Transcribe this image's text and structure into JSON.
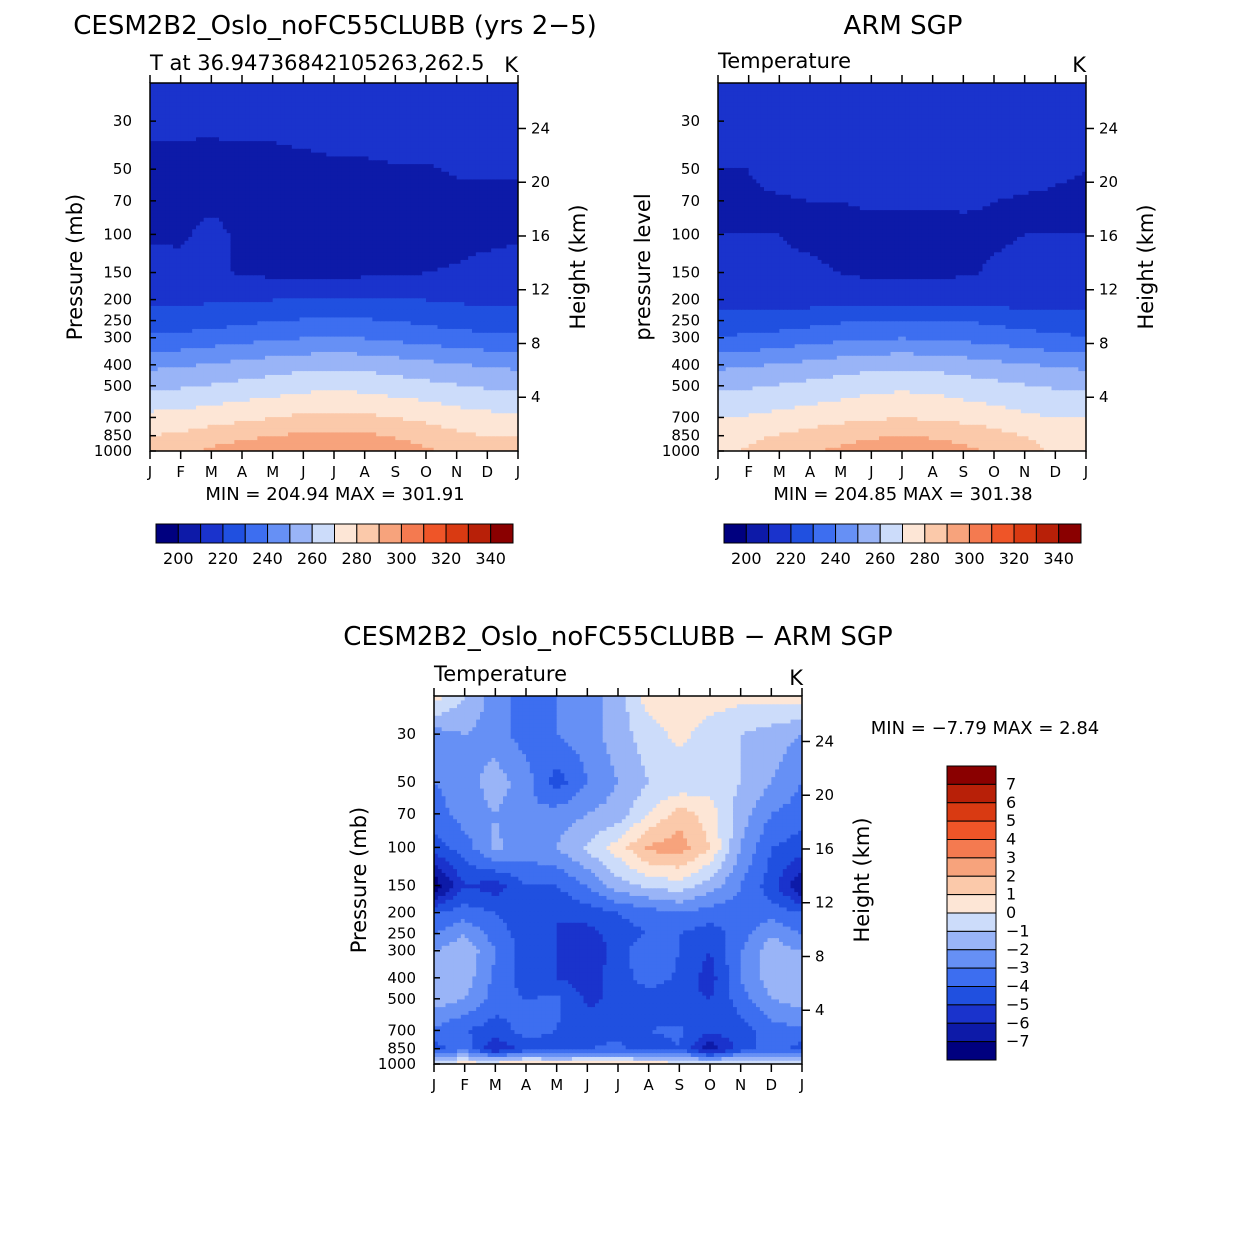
{
  "panels": [
    {
      "id": "model",
      "title": "CESM2B2_Oslo_noFC55CLUBB (yrs 2−5)",
      "subtitle": "T at 36.94736842105263,262.5",
      "units": "K",
      "left_axis_label": "Pressure (mb)",
      "right_axis_label": "Height (km)",
      "stats": "MIN = 204.94 MAX = 301.91"
    },
    {
      "id": "obs",
      "title": "ARM SGP",
      "subtitle": "Temperature",
      "units": "K",
      "left_axis_label": "pressure level",
      "right_axis_label": "Height (km)",
      "stats": "MIN = 204.85 MAX = 301.38"
    },
    {
      "id": "diff",
      "title": "CESM2B2_Oslo_noFC55CLUBB − ARM SGP",
      "subtitle": "Temperature",
      "units": "K",
      "left_axis_label": "Pressure (mb)",
      "right_axis_label": "Height (km)",
      "stats": "MIN = −7.79 MAX = 2.84"
    }
  ],
  "colors": {
    "abs_scale": [
      "#00007f",
      "#0d1aa8",
      "#1a33cc",
      "#2050e0",
      "#3d6ef0",
      "#6690f5",
      "#99b4f7",
      "#ccdcfa",
      "#fde6d6",
      "#fbc9aa",
      "#f7a37c",
      "#f47a50",
      "#ef5528",
      "#d93a12",
      "#b82008",
      "#8a0000"
    ],
    "diff_scale": [
      "#00007f",
      "#0d1aa8",
      "#1a33cc",
      "#2050e0",
      "#3d6ef0",
      "#6690f5",
      "#99b4f7",
      "#ccdcfa",
      "#fde6d6",
      "#fbc9aa",
      "#f7a37c",
      "#f47a50",
      "#ef5528",
      "#d93a12",
      "#b82008",
      "#8a0000"
    ]
  },
  "chart_data": [
    {
      "type": "heatmap",
      "name": "model",
      "months": [
        "J",
        "F",
        "M",
        "A",
        "M",
        "J",
        "J",
        "A",
        "S",
        "O",
        "N",
        "D",
        "J"
      ],
      "pressure_ticks": [
        30,
        50,
        70,
        100,
        150,
        200,
        250,
        300,
        400,
        500,
        700,
        850,
        1000
      ],
      "height_ticks": [
        4,
        8,
        12,
        16,
        20,
        24
      ],
      "colorbar_levels": [
        200,
        210,
        220,
        230,
        240,
        250,
        260,
        270,
        280,
        290,
        300,
        310,
        320,
        330,
        340
      ],
      "colorbar_labels": [
        "200",
        "220",
        "240",
        "260",
        "280",
        "300",
        "320",
        "340"
      ],
      "pressure_levels": [
        1000,
        850,
        700,
        500,
        400,
        300,
        250,
        200,
        150,
        100,
        70,
        50,
        30,
        20
      ],
      "values": [
        [
          286,
          288,
          292,
          296,
          298,
          300,
          301,
          300,
          296,
          292,
          288,
          286,
          286
        ],
        [
          280,
          282,
          285,
          288,
          290,
          292,
          293,
          292,
          289,
          286,
          282,
          280,
          280
        ],
        [
          273,
          274,
          276,
          278,
          280,
          282,
          283,
          282,
          280,
          278,
          275,
          273,
          273
        ],
        [
          258,
          259,
          261,
          263,
          265,
          267,
          268,
          267,
          265,
          263,
          261,
          259,
          258
        ],
        [
          248,
          249,
          251,
          253,
          255,
          257,
          258,
          257,
          255,
          253,
          251,
          249,
          248
        ],
        [
          232,
          233,
          235,
          237,
          239,
          240,
          241,
          240,
          238,
          236,
          234,
          233,
          232
        ],
        [
          224,
          225,
          226,
          228,
          230,
          231,
          232,
          231,
          230,
          228,
          226,
          225,
          224
        ],
        [
          218,
          218,
          219,
          219,
          220,
          221,
          222,
          222,
          221,
          220,
          219,
          218,
          218
        ],
        [
          216,
          214,
          212,
          209,
          208,
          207,
          207,
          208,
          209,
          210,
          211,
          214,
          216
        ],
        [
          208,
          208,
          214,
          207,
          206,
          206,
          206,
          206,
          206,
          207,
          207,
          207,
          208
        ],
        [
          207,
          207,
          207,
          206,
          206,
          206,
          206,
          206,
          206,
          207,
          207,
          207,
          207
        ],
        [
          207,
          207,
          206,
          206,
          206,
          207,
          208,
          208,
          209,
          209,
          211,
          211,
          211
        ],
        [
          212,
          212,
          212,
          213,
          213,
          214,
          215,
          216,
          217,
          216,
          214,
          213,
          212
        ],
        [
          214,
          214,
          214,
          215,
          216,
          217,
          218,
          219,
          219,
          218,
          216,
          215,
          214
        ]
      ]
    },
    {
      "type": "heatmap",
      "name": "obs",
      "months": [
        "J",
        "F",
        "M",
        "A",
        "M",
        "J",
        "J",
        "A",
        "S",
        "O",
        "N",
        "D",
        "J"
      ],
      "pressure_ticks": [
        30,
        50,
        70,
        100,
        150,
        200,
        250,
        300,
        400,
        500,
        700,
        850,
        1000
      ],
      "height_ticks": [
        4,
        8,
        12,
        16,
        20,
        24
      ],
      "colorbar_levels": [
        200,
        210,
        220,
        230,
        240,
        250,
        260,
        270,
        280,
        290,
        300,
        310,
        320,
        330,
        340
      ],
      "colorbar_labels": [
        "200",
        "220",
        "240",
        "260",
        "280",
        "300",
        "320",
        "340"
      ],
      "pressure_levels": [
        1000,
        850,
        700,
        500,
        400,
        300,
        250,
        200,
        150,
        100,
        70,
        50,
        30,
        20
      ],
      "values": [
        [
          278,
          281,
          285,
          289,
          292,
          295,
          297,
          296,
          293,
          288,
          283,
          279,
          278
        ],
        [
          276,
          278,
          281,
          284,
          287,
          289,
          290,
          289,
          287,
          284,
          280,
          277,
          276
        ],
        [
          270,
          271,
          273,
          275,
          277,
          279,
          280,
          279,
          277,
          275,
          272,
          270,
          270
        ],
        [
          258,
          259,
          261,
          263,
          265,
          267,
          268,
          267,
          265,
          263,
          261,
          259,
          258
        ],
        [
          248,
          249,
          251,
          253,
          255,
          257,
          258,
          257,
          255,
          253,
          251,
          249,
          248
        ],
        [
          231,
          232,
          234,
          236,
          238,
          239,
          240,
          239,
          238,
          236,
          234,
          232,
          231
        ],
        [
          224,
          224,
          225,
          227,
          229,
          230,
          231,
          231,
          230,
          228,
          226,
          225,
          224
        ],
        [
          216,
          216,
          216,
          216,
          216,
          217,
          217,
          217,
          217,
          216,
          216,
          216,
          216
        ],
        [
          212,
          212,
          211,
          211,
          210,
          208,
          208,
          208,
          209,
          211,
          212,
          212,
          212
        ],
        [
          210,
          210,
          210,
          209,
          208,
          207,
          207,
          207,
          208,
          209,
          210,
          210,
          210
        ],
        [
          209,
          209,
          209,
          210,
          210,
          211,
          211,
          211,
          211,
          210,
          209,
          209,
          209
        ],
        [
          210,
          210,
          213,
          214,
          214,
          215,
          215,
          215,
          215,
          214,
          213,
          211,
          210
        ],
        [
          213,
          213,
          214,
          215,
          216,
          218,
          218,
          219,
          218,
          216,
          215,
          214,
          213
        ],
        [
          214,
          214,
          215,
          216,
          217,
          219,
          219,
          220,
          219,
          217,
          216,
          215,
          214
        ]
      ]
    },
    {
      "type": "heatmap",
      "name": "diff",
      "months": [
        "J",
        "F",
        "M",
        "A",
        "M",
        "J",
        "J",
        "A",
        "S",
        "O",
        "N",
        "D",
        "J"
      ],
      "pressure_ticks": [
        30,
        50,
        70,
        100,
        150,
        200,
        250,
        300,
        400,
        500,
        700,
        850,
        1000
      ],
      "height_ticks": [
        4,
        8,
        12,
        16,
        20,
        24
      ],
      "colorbar_levels": [
        -7,
        -6,
        -5,
        -4,
        -3,
        -2,
        -1,
        0,
        1,
        2,
        3,
        4,
        5,
        6,
        7
      ],
      "colorbar_labels": [
        "7",
        "6",
        "5",
        "4",
        "3",
        "2",
        "1",
        "0",
        "−1",
        "−2",
        "−3",
        "−4",
        "−5",
        "−6",
        "−7"
      ],
      "pressure_levels": [
        1000,
        850,
        700,
        500,
        400,
        300,
        250,
        200,
        150,
        100,
        70,
        50,
        30,
        20
      ],
      "values": [
        [
          0.5,
          0.5,
          0.8,
          1.2,
          1.0,
          0.9,
          1.0,
          0.8,
          0.5,
          0.3,
          0.5,
          0.5,
          0.5
        ],
        [
          -4.5,
          -3.2,
          -6.0,
          -4.5,
          -4.5,
          -4.0,
          -3.8,
          -4.5,
          -4.0,
          -6.8,
          -4.5,
          -3.5,
          -4.5
        ],
        [
          -3.2,
          -4.0,
          -4.5,
          -3.6,
          -4.0,
          -4.5,
          -4.2,
          -4.0,
          -3.8,
          -4.8,
          -4.5,
          -3.5,
          -3.2
        ],
        [
          -1.5,
          -2.0,
          -3.5,
          -4.0,
          -3.8,
          -5.2,
          -4.8,
          -4.5,
          -4.8,
          -5.0,
          -3.5,
          -2.0,
          -1.5
        ],
        [
          -1.8,
          -1.5,
          -3.2,
          -4.5,
          -5.0,
          -5.5,
          -4.5,
          -3.5,
          -4.2,
          -5.5,
          -3.0,
          -1.5,
          -1.8
        ],
        [
          -2.0,
          -1.2,
          -3.0,
          -4.5,
          -5.0,
          -5.8,
          -4.5,
          -3.0,
          -4.0,
          -5.0,
          -3.0,
          -1.5,
          -2.0
        ],
        [
          -3.0,
          -2.0,
          -3.5,
          -4.5,
          -5.0,
          -5.5,
          -4.5,
          -4.0,
          -4.0,
          -4.5,
          -3.5,
          -2.0,
          -3.0
        ],
        [
          -4.0,
          -3.5,
          -4.0,
          -4.5,
          -5.0,
          -4.5,
          -4.0,
          -3.5,
          -3.0,
          -3.5,
          -3.5,
          -3.5,
          -4.0
        ],
        [
          -7.8,
          -5.0,
          -5.5,
          -4.0,
          -4.0,
          -3.0,
          -1.5,
          -0.8,
          -0.5,
          -1.5,
          -3.0,
          -4.5,
          -7.0
        ],
        [
          -4.5,
          -3.5,
          -1.8,
          -2.5,
          -2.0,
          -0.8,
          0.5,
          2.2,
          2.6,
          1.0,
          -2.0,
          -4.0,
          -4.5
        ],
        [
          -3.5,
          -2.5,
          -2.0,
          -3.0,
          -2.5,
          -2.0,
          -1.5,
          0.0,
          1.5,
          0.5,
          -1.5,
          -3.0,
          -3.5
        ],
        [
          -3.0,
          -2.5,
          -1.5,
          -2.5,
          -4.5,
          -3.0,
          -2.0,
          -1.0,
          -0.8,
          -0.5,
          -1.0,
          -2.0,
          -3.0
        ],
        [
          -2.5,
          -2.0,
          -2.5,
          -3.5,
          -3.0,
          -2.5,
          -1.5,
          -0.5,
          0.3,
          -0.5,
          -1.0,
          -1.5,
          -2.0
        ],
        [
          0.5,
          -1.0,
          -2.5,
          -3.5,
          -3.0,
          -2.5,
          -1.5,
          0.5,
          1.0,
          0.5,
          0.3,
          0.5,
          0.5
        ]
      ]
    }
  ]
}
